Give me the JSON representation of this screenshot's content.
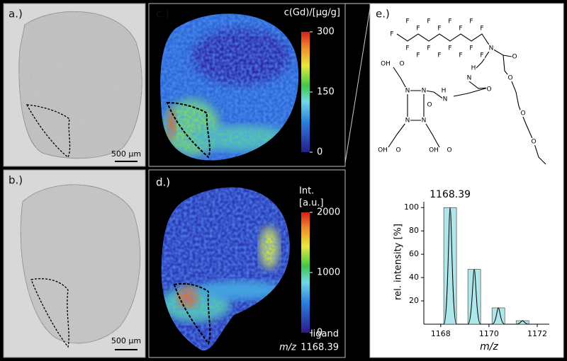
{
  "panels": {
    "a": {
      "label": "a.)",
      "scale_bar": "500 µm"
    },
    "b": {
      "label": "b.)",
      "scale_bar": "500 µm"
    },
    "c": {
      "label": "c.)",
      "colorbar": {
        "title": "c(Gd)/[µg/g]",
        "range": [
          0,
          300
        ],
        "ticks": [
          0,
          150,
          300
        ]
      }
    },
    "d": {
      "label": "d.)",
      "colorbar": {
        "title": [
          "Int.",
          "[a.u.]"
        ],
        "range": [
          0,
          2000
        ],
        "ticks": [
          0,
          1000,
          2000
        ]
      },
      "caption": {
        "name": "ligand",
        "mz": "m/z",
        "value": "1168.39"
      }
    },
    "e": {
      "label": "e.)"
    }
  },
  "structure": {
    "atoms": [
      "F",
      "F",
      "F",
      "F",
      "F",
      "F",
      "F",
      "F",
      "F",
      "F",
      "F",
      "F",
      "F",
      "F",
      "F",
      "F",
      "F",
      "N",
      "O",
      "H",
      "N",
      "O",
      "H",
      "N",
      "N",
      "N",
      "N",
      "N",
      "O",
      "OH",
      "O",
      "OH",
      "O",
      "OH",
      "O",
      "O",
      "O",
      "O"
    ]
  },
  "chart_data": {
    "type": "bar",
    "x": [
      1168.39,
      1169.39,
      1170.39,
      1171.39
    ],
    "values": [
      100,
      47,
      14,
      3
    ],
    "color": "#aee6ea",
    "annotation": "1168.39",
    "xlabel": "m/z",
    "ylabel": "rel. intensity [%]",
    "xlim": [
      1167.3,
      1172.5
    ],
    "xticks": [
      1168,
      1170,
      1172
    ],
    "ylim": [
      0,
      105
    ],
    "yticks": [
      20,
      40,
      60,
      80,
      100
    ]
  }
}
